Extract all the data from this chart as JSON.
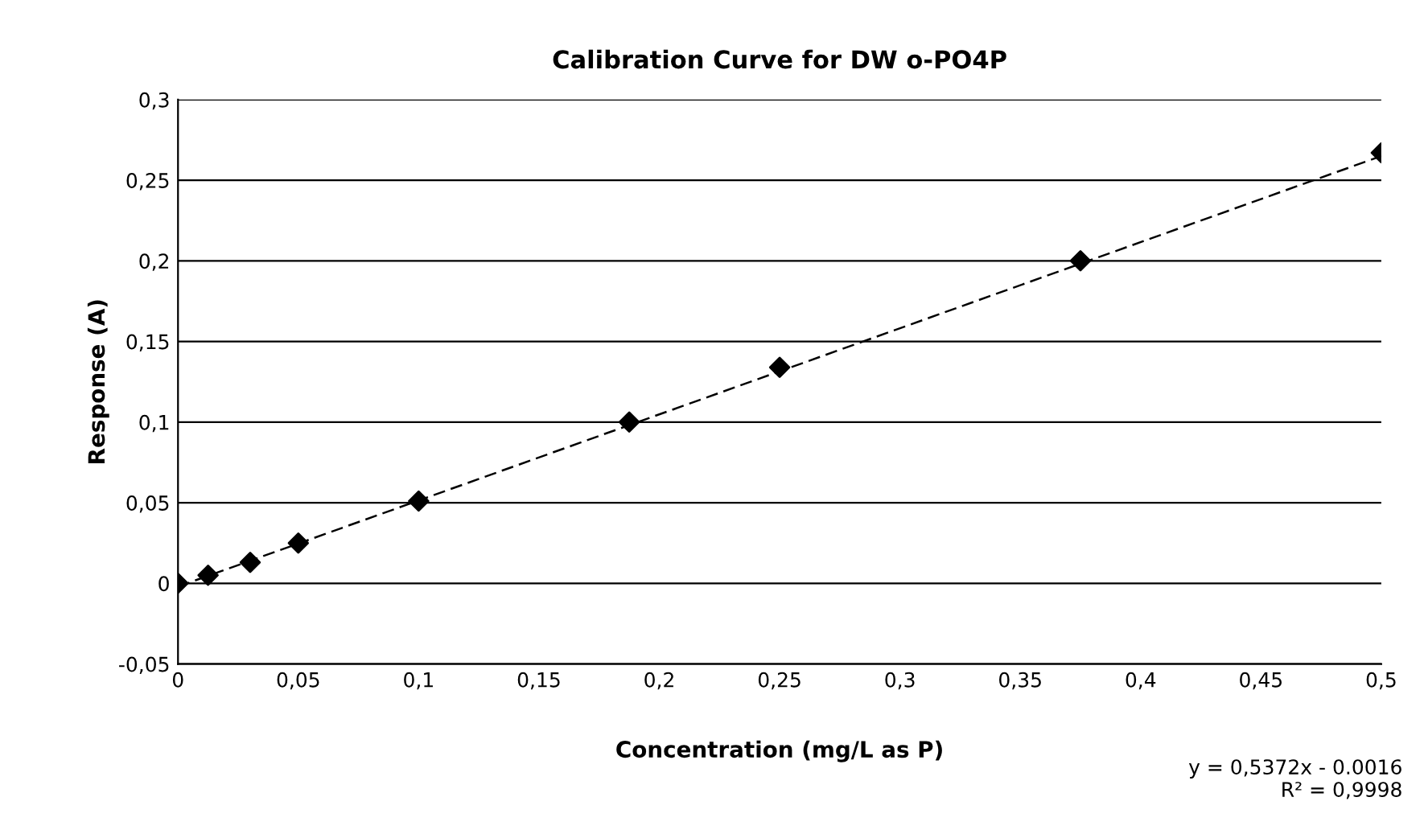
{
  "chart_data": {
    "type": "scatter",
    "title": "Calibration Curve for DW o-PO4P",
    "xlabel": "Concentration (mg/L as P)",
    "ylabel": "Response (A)",
    "xlim": [
      0,
      0.5
    ],
    "ylim": [
      -0.05,
      0.3
    ],
    "xticks": [
      0,
      {
        "value": 0.05,
        "label": "0,05"
      },
      {
        "value": 0.1,
        "label": "0,1"
      },
      {
        "value": 0.15,
        "label": "0,15"
      },
      {
        "value": 0.2,
        "label": "0,2"
      },
      {
        "value": 0.25,
        "label": "0,25"
      },
      {
        "value": 0.3,
        "label": "0,3"
      },
      {
        "value": 0.35,
        "label": "0,35"
      },
      {
        "value": 0.4,
        "label": "0,4"
      },
      {
        "value": 0.45,
        "label": "0,45"
      },
      {
        "value": 0.5,
        "label": "0,5"
      }
    ],
    "yticks": [
      {
        "value": -0.05,
        "label": "-0,05"
      },
      0,
      {
        "value": 0.05,
        "label": "0,05"
      },
      {
        "value": 0.1,
        "label": "0,1"
      },
      {
        "value": 0.15,
        "label": "0,15"
      },
      {
        "value": 0.2,
        "label": "0,2"
      },
      {
        "value": 0.25,
        "label": "0,25"
      },
      {
        "value": 0.3,
        "label": "0,3"
      }
    ],
    "grid": "y",
    "legend": false,
    "series": [
      {
        "color": "#000000",
        "marker": "diamond",
        "x": [
          0,
          0.0125,
          0.03,
          0.05,
          0.1,
          0.1875,
          0.25,
          0.375,
          0.5
        ],
        "values": [
          0,
          0.005,
          0.013,
          0.025,
          0.051,
          0.1,
          0.134,
          0.2,
          0.267
        ]
      },
      {
        "type": "line",
        "color": "#000000",
        "line_style": "dashed",
        "marker": "none",
        "x": [
          0,
          0.5
        ],
        "values": [
          -0.002,
          0.265
        ]
      }
    ],
    "annotations": [
      "y = 0,5372x - 0.0016\nR² = 0,9998"
    ]
  }
}
